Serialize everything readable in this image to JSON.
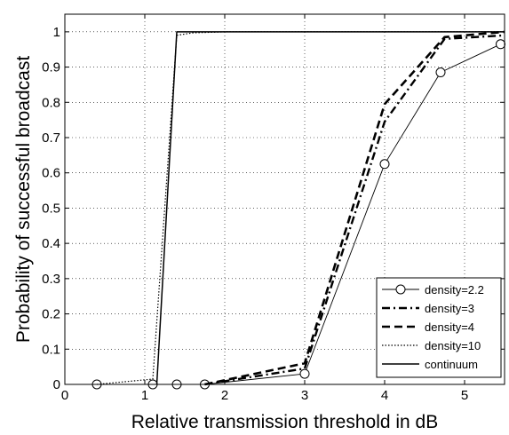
{
  "chart_data": {
    "type": "line",
    "title": "",
    "xlabel": "Relative transmission threshold in dB",
    "ylabel": "Probability of successful broadcast",
    "xlim": [
      0,
      5.5
    ],
    "ylim": [
      0,
      1.05
    ],
    "xticks": [
      "0",
      "1",
      "2",
      "3",
      "4",
      "5"
    ],
    "yticks": [
      "0",
      "0.1",
      "0.2",
      "0.3",
      "0.4",
      "0.5",
      "0.6",
      "0.7",
      "0.8",
      "0.9",
      "1"
    ],
    "grid": true,
    "legend_position": "bottom-right",
    "series": [
      {
        "name": "density=2.2",
        "style": "solid-thin-circle",
        "color": "#000000",
        "x": [
          0.4,
          1.1,
          1.4,
          1.75,
          3.0,
          4.0,
          4.7,
          5.45
        ],
        "y": [
          0.0,
          0.0,
          0.0,
          0.0,
          0.03,
          0.625,
          0.885,
          0.965
        ]
      },
      {
        "name": "density=3",
        "style": "dashdot",
        "color": "#000000",
        "x": [
          1.75,
          3.0,
          4.0,
          4.75,
          5.5
        ],
        "y": [
          0.0,
          0.045,
          0.745,
          0.98,
          0.99
        ]
      },
      {
        "name": "density=4",
        "style": "dashed",
        "color": "#000000",
        "x": [
          1.75,
          3.0,
          4.0,
          4.75,
          5.5
        ],
        "y": [
          0.0,
          0.06,
          0.795,
          0.985,
          1.0
        ]
      },
      {
        "name": "density=10",
        "style": "dotted",
        "color": "#000000",
        "x": [
          0.4,
          1.1,
          1.4,
          1.6,
          2.0,
          5.5
        ],
        "y": [
          0.0,
          0.015,
          0.99,
          0.997,
          1.0,
          1.0
        ]
      },
      {
        "name": "continuum",
        "style": "solid",
        "color": "#000000",
        "x": [
          1.15,
          1.4,
          5.5
        ],
        "y": [
          0.0,
          1.0,
          1.0
        ]
      }
    ]
  }
}
